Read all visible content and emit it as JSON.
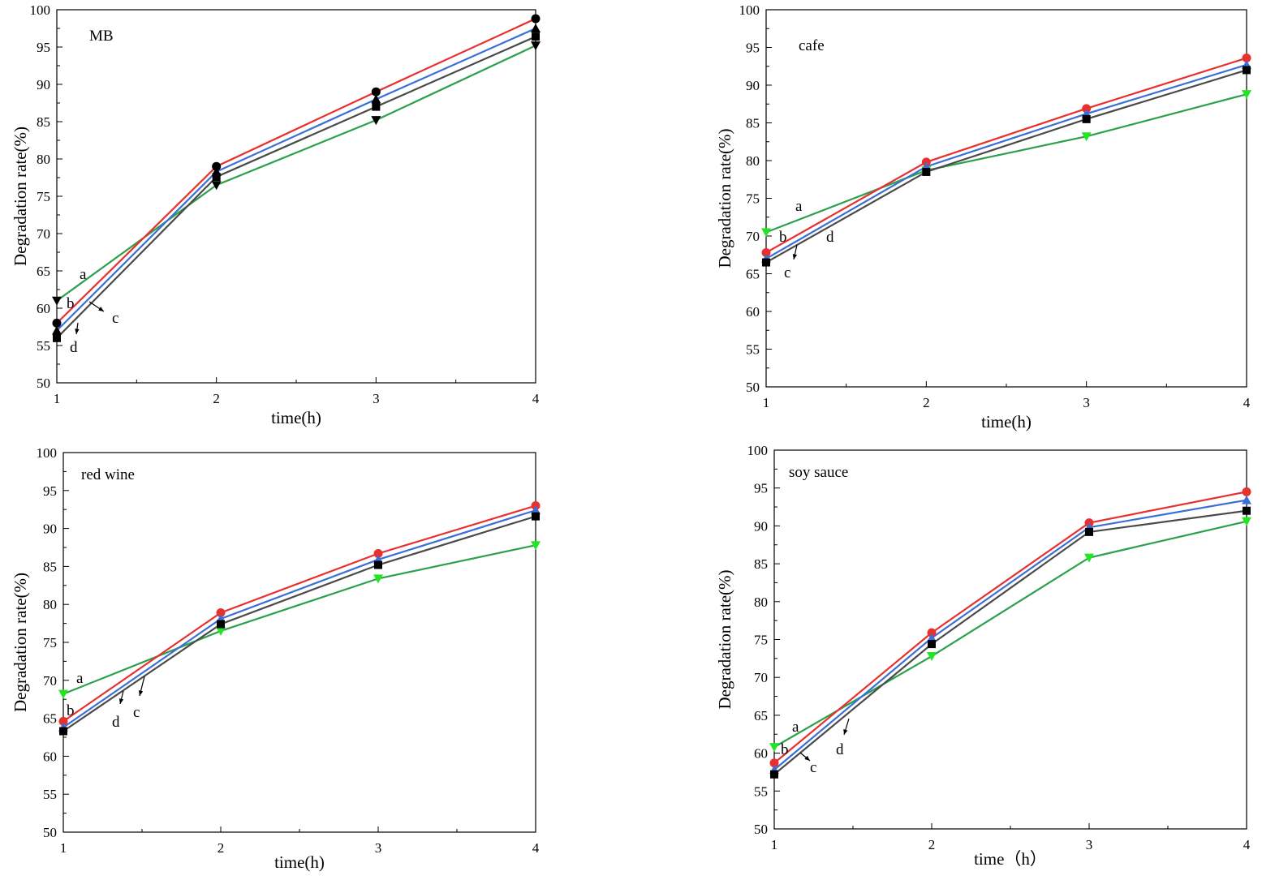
{
  "figure": {
    "background": "#ffffff"
  },
  "chart_data": [
    {
      "type": "line",
      "title": "MB",
      "xlabel": "time(h)",
      "ylabel": "Degradation rate(%)",
      "x": [
        1,
        2,
        3,
        4
      ],
      "xlim": [
        1,
        4
      ],
      "ylim": [
        50,
        100
      ],
      "xticks": [
        "1",
        "2",
        "3",
        "4"
      ],
      "yticks": [
        "50",
        "55",
        "60",
        "65",
        "70",
        "75",
        "80",
        "85",
        "90",
        "95",
        "100"
      ],
      "series": [
        {
          "name": "a",
          "color": "#2ca04c",
          "marker": "triangle-down",
          "marker_color": "#000000",
          "values": [
            61.0,
            76.5,
            85.2,
            95.2
          ]
        },
        {
          "name": "b",
          "color": "#e8302f",
          "marker": "circle",
          "marker_color": "#000000",
          "values": [
            58.0,
            79.0,
            89.0,
            98.8
          ]
        },
        {
          "name": "c",
          "color": "#3a6fd8",
          "marker": "triangle-up",
          "marker_color": "#000000",
          "values": [
            57.0,
            78.3,
            88.0,
            97.5
          ]
        },
        {
          "name": "d",
          "color": "#4a4a4a",
          "marker": "square",
          "marker_color": "#000000",
          "values": [
            56.0,
            77.6,
            87.0,
            96.4
          ]
        }
      ],
      "annotations": [
        "a",
        "b",
        "c",
        "d"
      ]
    },
    {
      "type": "line",
      "title": "cafe",
      "xlabel": "time(h)",
      "ylabel": "Degradation rate(%)",
      "x": [
        1,
        2,
        3,
        4
      ],
      "xlim": [
        1,
        4
      ],
      "ylim": [
        50,
        100
      ],
      "xticks": [
        "1",
        "2",
        "3",
        "4"
      ],
      "yticks": [
        "50",
        "55",
        "60",
        "65",
        "70",
        "75",
        "80",
        "85",
        "90",
        "95",
        "100"
      ],
      "series": [
        {
          "name": "a",
          "color": "#2ca04c",
          "marker": "triangle-down",
          "marker_color": "#22e622",
          "values": [
            70.5,
            78.7,
            83.2,
            88.8
          ]
        },
        {
          "name": "b",
          "color": "#e8302f",
          "marker": "circle",
          "marker_color": "#e8302f",
          "values": [
            67.8,
            79.8,
            86.9,
            93.6
          ]
        },
        {
          "name": "c",
          "color": "#3a6fd8",
          "marker": "triangle-up",
          "marker_color": "#3a6fd8",
          "values": [
            67.0,
            79.2,
            86.2,
            92.7
          ]
        },
        {
          "name": "d",
          "color": "#4a4a4a",
          "marker": "square",
          "marker_color": "#000000",
          "values": [
            66.5,
            78.5,
            85.5,
            92.0
          ]
        }
      ],
      "annotations": [
        "a",
        "b",
        "c",
        "d"
      ]
    },
    {
      "type": "line",
      "title": "red wine",
      "xlabel": "time(h)",
      "ylabel": "Degradation rate(%)",
      "x": [
        1,
        2,
        3,
        4
      ],
      "xlim": [
        1,
        4
      ],
      "ylim": [
        50,
        100
      ],
      "xticks": [
        "1",
        "2",
        "3",
        "4"
      ],
      "yticks": [
        "50",
        "55",
        "60",
        "65",
        "70",
        "75",
        "80",
        "85",
        "90",
        "95",
        "100"
      ],
      "series": [
        {
          "name": "a",
          "color": "#2ca04c",
          "marker": "triangle-down",
          "marker_color": "#22e622",
          "values": [
            68.2,
            76.5,
            83.4,
            87.8
          ]
        },
        {
          "name": "b",
          "color": "#e8302f",
          "marker": "circle",
          "marker_color": "#e8302f",
          "values": [
            64.6,
            78.9,
            86.7,
            93.0
          ]
        },
        {
          "name": "c",
          "color": "#3a6fd8",
          "marker": "triangle-up",
          "marker_color": "#3a6fd8",
          "values": [
            63.8,
            78.1,
            85.9,
            92.4
          ]
        },
        {
          "name": "d",
          "color": "#4a4a4a",
          "marker": "square",
          "marker_color": "#000000",
          "values": [
            63.3,
            77.4,
            85.2,
            91.6
          ]
        }
      ],
      "annotations": [
        "a",
        "b",
        "c",
        "d"
      ]
    },
    {
      "type": "line",
      "title": "soy sauce",
      "xlabel": "time（h）",
      "ylabel": "Degradation rate(%)",
      "x": [
        1,
        2,
        3,
        4
      ],
      "xlim": [
        1,
        4
      ],
      "ylim": [
        50,
        100
      ],
      "xticks": [
        "1",
        "2",
        "3",
        "4"
      ],
      "yticks": [
        "50",
        "55",
        "60",
        "65",
        "70",
        "75",
        "80",
        "85",
        "90",
        "95",
        "100"
      ],
      "series": [
        {
          "name": "a",
          "color": "#2ca04c",
          "marker": "triangle-down",
          "marker_color": "#22e622",
          "values": [
            60.8,
            72.8,
            85.8,
            90.6
          ]
        },
        {
          "name": "b",
          "color": "#e8302f",
          "marker": "circle",
          "marker_color": "#e8302f",
          "values": [
            58.7,
            75.9,
            90.4,
            94.5
          ]
        },
        {
          "name": "c",
          "color": "#3a6fd8",
          "marker": "triangle-up",
          "marker_color": "#3a6fd8",
          "values": [
            57.8,
            75.2,
            89.8,
            93.4
          ]
        },
        {
          "name": "d",
          "color": "#4a4a4a",
          "marker": "square",
          "marker_color": "#000000",
          "values": [
            57.2,
            74.4,
            89.2,
            92.0
          ]
        }
      ],
      "annotations": [
        "a",
        "b",
        "c",
        "d"
      ]
    }
  ]
}
